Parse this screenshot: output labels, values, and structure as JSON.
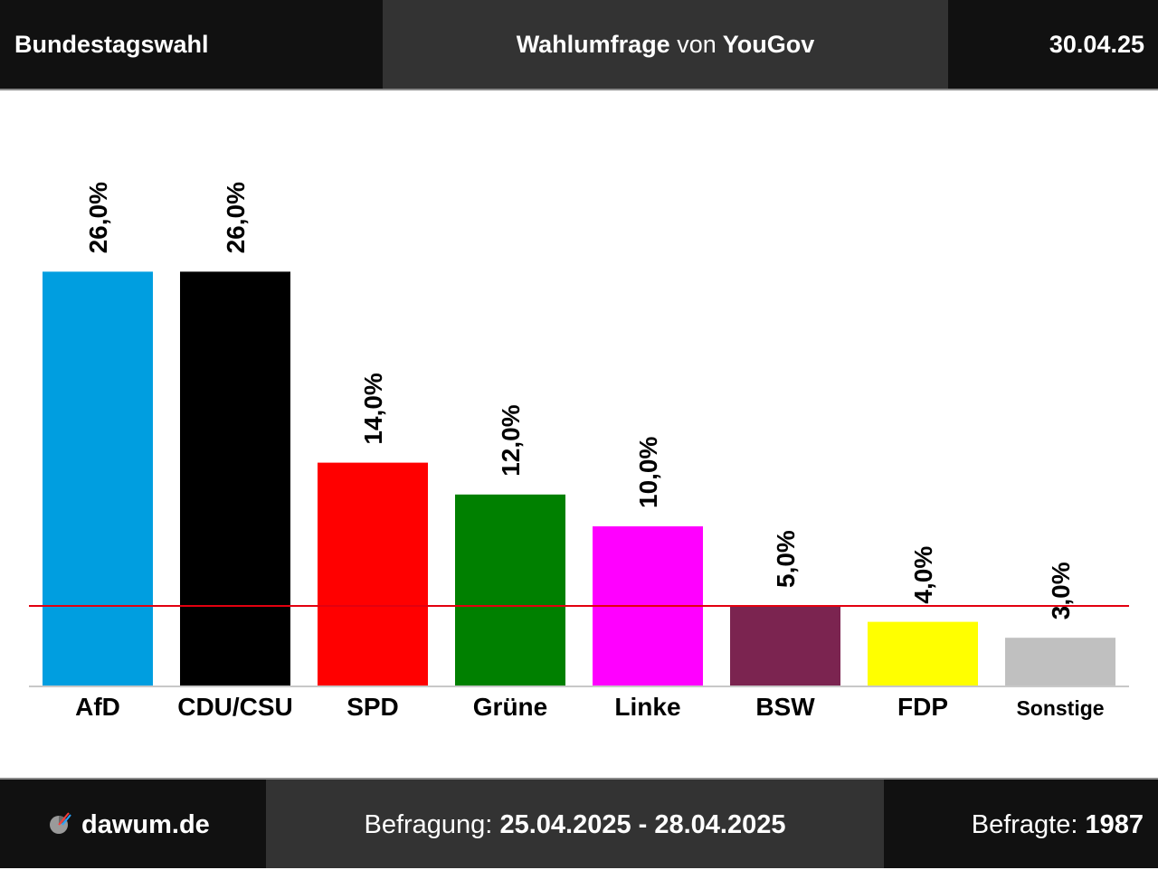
{
  "header": {
    "title": "Bundestagswahl",
    "poll_strong": "Wahlumfrage",
    "poll_von": "von",
    "institute": "YouGov",
    "date": "30.04.25"
  },
  "footer": {
    "brand": "dawum.de",
    "survey_label": "Befragung:",
    "survey_period": "25.04.2025 - 28.04.2025",
    "respondents_label": "Befragte:",
    "respondents": "1987"
  },
  "chart_data": {
    "type": "bar",
    "categories": [
      "AfD",
      "CDU/CSU",
      "SPD",
      "Grüne",
      "Linke",
      "BSW",
      "FDP",
      "Sonstige"
    ],
    "values": [
      26.0,
      26.0,
      14.0,
      12.0,
      10.0,
      5.0,
      4.0,
      3.0
    ],
    "value_labels": [
      "26,0%",
      "26,0%",
      "14,0%",
      "12,0%",
      "10,0%",
      "5,0%",
      "4,0%",
      "3,0%"
    ],
    "colors": [
      "#009ee0",
      "#000000",
      "#ff0000",
      "#008000",
      "#ff00ff",
      "#7b2450",
      "#ffff00",
      "#c0c0c0"
    ],
    "threshold": 5,
    "threshold_color": "#e3000f",
    "ylim": [
      0,
      26
    ],
    "grid": false
  }
}
